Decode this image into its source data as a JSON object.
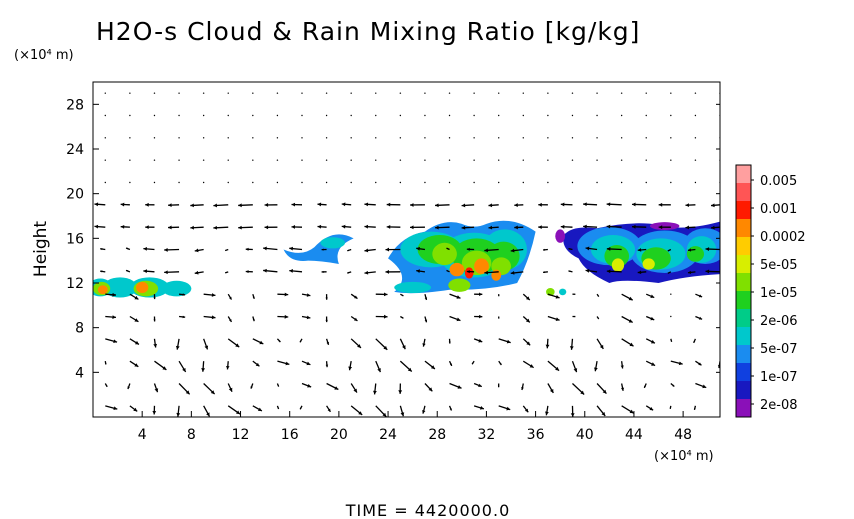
{
  "chart_data": {
    "type": "heatmap",
    "title": "H2O-s Cloud & Rain Mixing Ratio [kg/kg]",
    "ylabel": "Height",
    "y_unit": "(×10⁴ m)",
    "x_unit": "(×10⁴ m)",
    "xlim": [
      0,
      51
    ],
    "ylim": [
      0,
      30
    ],
    "x_ticks": [
      4,
      8,
      12,
      16,
      20,
      24,
      28,
      32,
      36,
      40,
      44,
      48
    ],
    "y_ticks": [
      4,
      8,
      12,
      16,
      20,
      24,
      28
    ],
    "x_tick_labels": [
      "4",
      "8",
      "12",
      "16",
      "20",
      "24",
      "28",
      "32",
      "36",
      "40",
      "44",
      "48"
    ],
    "y_tick_labels": [
      "4",
      "8",
      "12",
      "16",
      "20",
      "24",
      "28"
    ],
    "colorbar": {
      "labels": [
        "0.005",
        "0.001",
        "0.0002",
        "5e-05",
        "1e-05",
        "2e-06",
        "5e-07",
        "1e-07",
        "2e-08"
      ],
      "colors": [
        "#ff9f9f",
        "#ff5555",
        "#ff1a00",
        "#ff8800",
        "#ffcc00",
        "#d8ee00",
        "#80e000",
        "#1fd01f",
        "#00cc88",
        "#00c8cc",
        "#1a8cf0",
        "#1040e0",
        "#1818c0",
        "#8a10b8"
      ]
    },
    "cloud_regions": [
      {
        "name": "left low cloud",
        "x_range": [
          0,
          8.5
        ],
        "y_range": [
          10.8,
          12.6
        ],
        "max_level": "0.0002"
      },
      {
        "name": "isolated cloud",
        "x_range": [
          15.5,
          21.5
        ],
        "y_range": [
          13.5,
          17.0
        ],
        "max_level": "2e-06"
      },
      {
        "name": "central cloud band",
        "x_range": [
          24,
          36
        ],
        "y_range": [
          10.8,
          18.0
        ],
        "max_level": "0.001"
      },
      {
        "name": "right cloud band",
        "x_range": [
          37.5,
          51
        ],
        "y_range": [
          12.0,
          17.6
        ],
        "max_level": "0.0002"
      }
    ],
    "vectors": "wind vectors on a regular grid (every 2 x-units, every 2 y-units), weak above 20, strong sheared flow in lower levels"
  },
  "footer": {
    "time_label": "TIME  =  4420000.0"
  }
}
